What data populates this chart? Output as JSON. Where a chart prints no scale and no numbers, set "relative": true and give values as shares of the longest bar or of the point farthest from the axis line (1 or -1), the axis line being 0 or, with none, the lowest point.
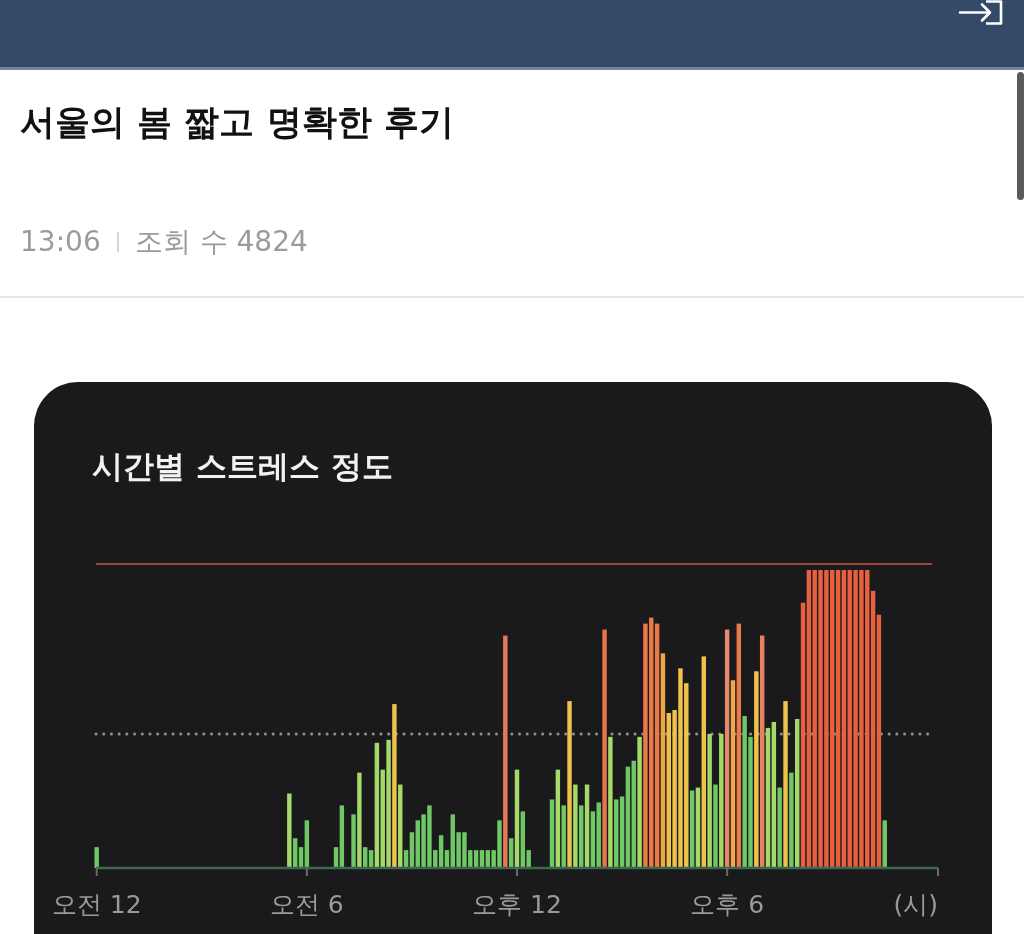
{
  "chart_data": {
    "type": "bar",
    "title": "시간별 스트레스 정도",
    "xlabel": "(시)",
    "relative": true,
    "annotations": [
      "서울의 봄 짧고 명확한 후기",
      "13:06",
      "조회 수 4824"
    ],
    "categories": [
      "오전 12",
      null,
      null,
      null,
      null,
      null,
      null,
      null,
      null,
      null,
      null,
      null,
      null,
      null,
      null,
      null,
      null,
      null,
      null,
      null,
      null,
      null,
      null,
      null,
      null,
      null,
      null,
      null,
      null,
      null,
      null,
      null,
      null,
      null,
      null,
      null,
      "오전 6",
      null,
      null,
      null,
      null,
      null,
      null,
      null,
      null,
      null,
      null,
      null,
      null,
      null,
      null,
      null,
      null,
      null,
      null,
      null,
      null,
      null,
      null,
      null,
      null,
      null,
      null,
      null,
      null,
      null,
      null,
      null,
      null,
      null,
      null,
      null,
      "오후 12",
      null,
      null,
      null,
      null,
      null,
      null,
      null,
      null,
      null,
      null,
      null,
      null,
      null,
      null,
      null,
      null,
      null,
      null,
      null,
      null,
      null,
      null,
      null,
      null,
      null,
      null,
      null,
      null,
      null,
      null,
      null,
      null,
      null,
      null,
      null,
      "오후 6",
      null,
      null,
      null,
      null,
      null,
      null,
      null,
      null,
      null,
      null,
      null,
      null,
      null,
      null,
      null,
      null,
      null,
      null,
      null,
      null,
      null,
      null,
      null,
      null,
      null,
      null,
      null,
      null,
      null,
      null,
      null,
      null,
      null,
      null,
      null
    ],
    "values": [
      0.07,
      null,
      null,
      null,
      null,
      null,
      null,
      null,
      null,
      null,
      null,
      null,
      null,
      null,
      null,
      null,
      null,
      null,
      null,
      null,
      null,
      null,
      null,
      null,
      null,
      null,
      null,
      null,
      null,
      null,
      null,
      null,
      null,
      0.25,
      0.1,
      0.07,
      0.16,
      null,
      null,
      null,
      null,
      0.07,
      0.21,
      null,
      0.18,
      0.32,
      0.07,
      0.06,
      0.42,
      0.33,
      0.43,
      0.55,
      0.28,
      0.06,
      0.12,
      0.16,
      0.18,
      0.21,
      0.06,
      0.11,
      0.06,
      0.18,
      0.12,
      0.12,
      0.06,
      0.06,
      0.06,
      0.06,
      0.06,
      0.16,
      0.78,
      0.1,
      0.33,
      0.19,
      0.06,
      null,
      null,
      null,
      0.23,
      0.33,
      0.21,
      0.56,
      0.28,
      0.21,
      0.28,
      0.19,
      0.22,
      0.8,
      0.44,
      0.23,
      0.24,
      0.34,
      0.36,
      0.44,
      0.82,
      0.84,
      0.82,
      0.72,
      0.52,
      0.53,
      0.67,
      0.62,
      0.26,
      0.27,
      0.71,
      0.45,
      0.28,
      0.45,
      0.8,
      0.63,
      0.82,
      0.51,
      0.44,
      0.66,
      0.78,
      0.47,
      0.49,
      0.27,
      0.56,
      0.32,
      0.5,
      0.89,
      1,
      1,
      1,
      1,
      1,
      1,
      1,
      1,
      1,
      1,
      1,
      0.93,
      0.85,
      0.16,
      null,
      null,
      null,
      null,
      null,
      null,
      null,
      null
    ],
    "colors": [
      "#6fc765",
      null,
      null,
      null,
      null,
      null,
      null,
      null,
      null,
      null,
      null,
      null,
      null,
      null,
      null,
      null,
      null,
      null,
      null,
      null,
      null,
      null,
      null,
      null,
      null,
      null,
      null,
      null,
      null,
      null,
      null,
      null,
      null,
      "#a5d96a",
      "#6fc765",
      "#6fc765",
      "#6fc765",
      null,
      null,
      null,
      null,
      "#6fc765",
      "#6fc765",
      null,
      "#6fc765",
      "#a5d96a",
      "#6fc765",
      "#6fc765",
      "#a5d96a",
      "#a5d96a",
      "#a5d96a",
      "#efc24c",
      "#a5d96a",
      "#6fc765",
      "#6fc765",
      "#6fc765",
      "#6fc765",
      "#6fc765",
      "#6fc765",
      "#6fc765",
      "#6fc765",
      "#6fc765",
      "#6fc765",
      "#6fc765",
      "#6fc765",
      "#6fc765",
      "#6fc765",
      "#6fc765",
      "#6fc765",
      "#6fc765",
      "#e8785a",
      "#6fc765",
      "#a5d96a",
      "#6fc765",
      "#6fc765",
      null,
      null,
      null,
      "#6fc765",
      "#a5d96a",
      "#6fc765",
      "#efc24c",
      "#a5d96a",
      "#6fc765",
      "#a5d96a",
      "#6fc765",
      "#6fc765",
      "#e6754c",
      "#a5d96a",
      "#6fc765",
      "#6fc765",
      "#6fc765",
      "#6fc765",
      "#a5d96a",
      "#ec7a48",
      "#ec7a48",
      "#ec7a48",
      "#f0a748",
      "#efc24c",
      "#efc24c",
      "#efc24c",
      "#efc24c",
      "#6fc765",
      "#a5d96a",
      "#efc24c",
      "#a5d96a",
      "#6fc765",
      "#a5d96a",
      "#e58a6c",
      "#f0a748",
      "#ec7a48",
      "#6fc765",
      "#6fc765",
      "#efc24c",
      "#e8825e",
      "#a5d96a",
      "#a5d96a",
      "#6fc765",
      "#efc24c",
      "#6fc765",
      "#a5d96a",
      "#e5613f",
      "#e5613f",
      "#e5613f",
      "#e5613f",
      "#e5613f",
      "#e5613f",
      "#e5613f",
      "#e5613f",
      "#e5613f",
      "#e5613f",
      "#e5613f",
      "#e5613f",
      "#e5613f",
      "#e5613f",
      "#6fc765",
      null,
      null,
      null,
      null,
      null,
      null,
      null,
      null
    ],
    "ref_lines": [
      {
        "axis": "y",
        "value": 1.02,
        "color": "#9c4a3a",
        "line_style": "solid"
      },
      {
        "axis": "y",
        "value": 0.45,
        "color": "#8f8f8f",
        "line_style": "dotted"
      }
    ]
  }
}
